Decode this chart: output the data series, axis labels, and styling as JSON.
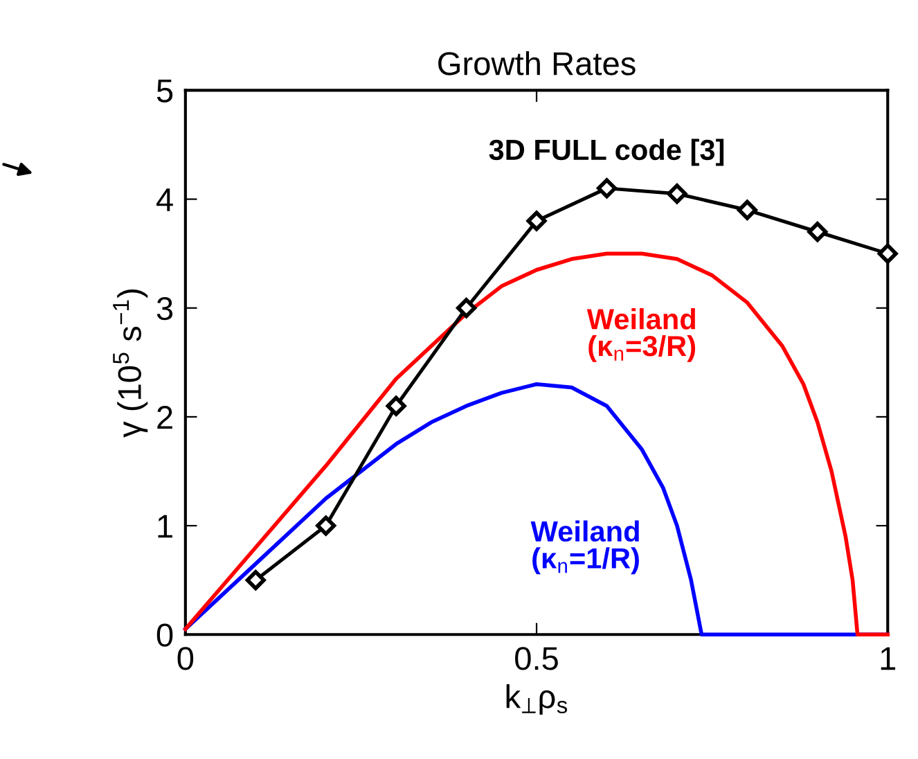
{
  "chart_data": {
    "type": "line",
    "title": "Growth Rates",
    "xlabel": "k$_{⊥}$ρ$_{s}$",
    "ylabel": "γ (10$^{5}$ s$^{−1}$)",
    "xlim": [
      0,
      1
    ],
    "ylim": [
      0,
      5
    ],
    "xticks": [
      0,
      0.5,
      1
    ],
    "yticks": [
      0,
      1,
      2,
      3,
      4,
      5
    ],
    "grid": false,
    "legend": false,
    "line_style": "solid",
    "series": [
      {
        "name": "3D FULL code [3]",
        "color": "#000000",
        "marker": "diamond",
        "x": [
          0.1,
          0.2,
          0.3,
          0.4,
          0.5,
          0.6,
          0.7,
          0.8,
          0.9,
          1.0
        ],
        "values": [
          0.5,
          1.0,
          2.1,
          3.0,
          3.8,
          4.1,
          4.05,
          3.9,
          3.7,
          3.5
        ]
      },
      {
        "name": "Weiland\n(κ$_{n}$=3/R)",
        "color": "#ff0000",
        "marker": "none",
        "x": [
          0,
          0.1,
          0.2,
          0.3,
          0.35,
          0.4,
          0.45,
          0.5,
          0.55,
          0.6,
          0.65,
          0.7,
          0.75,
          0.8,
          0.85,
          0.88,
          0.9,
          0.92,
          0.94,
          0.95,
          0.957,
          1.0
        ],
        "values": [
          0.05,
          0.8,
          1.55,
          2.35,
          2.65,
          2.95,
          3.2,
          3.35,
          3.45,
          3.5,
          3.5,
          3.45,
          3.3,
          3.05,
          2.65,
          2.3,
          1.95,
          1.5,
          0.9,
          0.5,
          0,
          0
        ]
      },
      {
        "name": "Weiland\n(κ$_{n}$=1/R)",
        "color": "#0000ff",
        "marker": "none",
        "x": [
          0,
          0.1,
          0.2,
          0.3,
          0.35,
          0.4,
          0.45,
          0.5,
          0.55,
          0.6,
          0.65,
          0.68,
          0.7,
          0.72,
          0.735,
          1.0
        ],
        "values": [
          0.05,
          0.65,
          1.25,
          1.75,
          1.95,
          2.1,
          2.22,
          2.3,
          2.27,
          2.1,
          1.7,
          1.35,
          1.0,
          0.5,
          0,
          0
        ]
      }
    ]
  }
}
